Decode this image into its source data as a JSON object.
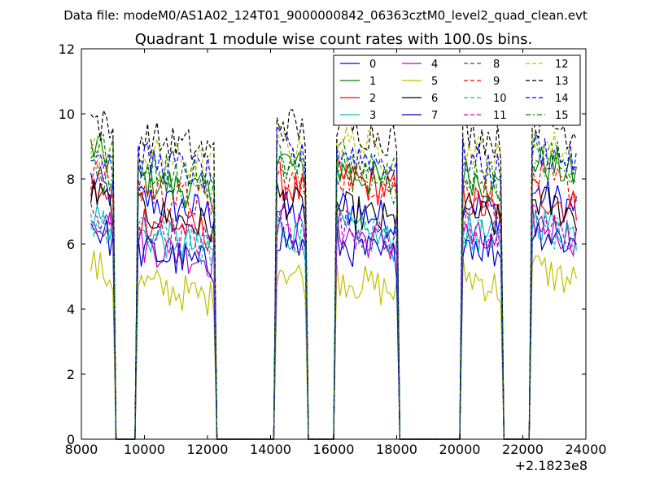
{
  "chart_data": {
    "type": "line",
    "suptitle": "Data file: modeM0/AS1A02_124T01_9000000842_06363cztM0_level2_quad_clean.evt",
    "title": "Quadrant 1 module wise count rates with 100.0s bins.",
    "xlabel": "",
    "ylabel": "",
    "xlim": [
      8000,
      24000
    ],
    "ylim": [
      0,
      12
    ],
    "xticks": [
      8000,
      10000,
      12000,
      14000,
      16000,
      18000,
      20000,
      22000,
      24000
    ],
    "xtick_labels": [
      "8000",
      "10000",
      "12000",
      "14000",
      "16000",
      "18000",
      "20000",
      "22000",
      "24000"
    ],
    "yticks": [
      0,
      2,
      4,
      6,
      8,
      10,
      12
    ],
    "ytick_labels": [
      "0",
      "2",
      "4",
      "6",
      "8",
      "10",
      "12"
    ],
    "x_offset_label": "+2.1823e8",
    "grid": false,
    "legend_position": "top-right",
    "legend_columns": 4,
    "x_start": 8300,
    "x_step": 100,
    "segments": [
      [
        8300,
        9000
      ],
      [
        9800,
        12200
      ],
      [
        14200,
        15100
      ],
      [
        16100,
        18000
      ],
      [
        20100,
        21300
      ],
      [
        22300,
        23700
      ]
    ],
    "series": [
      {
        "name": "0",
        "color": "#0000ff",
        "dash": "solid",
        "levels": [
          8.0,
          7.4,
          7.2,
          7.2,
          7.4,
          7.6
        ]
      },
      {
        "name": "1",
        "color": "#008000",
        "dash": "solid",
        "levels": [
          9.0,
          8.0,
          8.7,
          8.3,
          8.2,
          8.6
        ]
      },
      {
        "name": "2",
        "color": "#ff0000",
        "dash": "solid",
        "levels": [
          7.7,
          6.8,
          8.0,
          8.1,
          7.4,
          7.6
        ]
      },
      {
        "name": "3",
        "color": "#00bfbf",
        "dash": "solid",
        "levels": [
          7.0,
          6.3,
          6.6,
          6.5,
          6.5,
          6.8
        ]
      },
      {
        "name": "4",
        "color": "#bf00bf",
        "dash": "solid",
        "levels": [
          7.0,
          6.0,
          6.8,
          6.4,
          6.3,
          6.7
        ]
      },
      {
        "name": "5",
        "color": "#bfbf00",
        "dash": "solid",
        "levels": [
          5.4,
          4.8,
          5.4,
          5.0,
          5.1,
          5.3
        ]
      },
      {
        "name": "6",
        "color": "#000000",
        "dash": "solid",
        "levels": [
          7.6,
          7.0,
          7.5,
          7.1,
          7.1,
          7.4
        ]
      },
      {
        "name": "7",
        "color": "#0000cc",
        "dash": "solid",
        "levels": [
          6.6,
          5.8,
          6.3,
          6.0,
          6.2,
          6.5
        ]
      },
      {
        "name": "8",
        "color": "#008000",
        "dash": "dashed",
        "levels": [
          9.2,
          8.5,
          8.8,
          8.8,
          8.4,
          8.9
        ]
      },
      {
        "name": "9",
        "color": "#ff0000",
        "dash": "dashed",
        "levels": [
          8.2,
          7.7,
          8.1,
          8.2,
          7.8,
          8.1
        ]
      },
      {
        "name": "10",
        "color": "#00bfbf",
        "dash": "dashed",
        "levels": [
          6.8,
          6.3,
          6.6,
          6.7,
          6.5,
          6.6
        ]
      },
      {
        "name": "11",
        "color": "#bf00bf",
        "dash": "dashed",
        "levels": [
          6.9,
          6.5,
          6.6,
          6.6,
          6.6,
          6.7
        ]
      },
      {
        "name": "12",
        "color": "#bfbf00",
        "dash": "dashed",
        "levels": [
          9.0,
          8.8,
          9.2,
          9.2,
          9.0,
          9.2
        ]
      },
      {
        "name": "13",
        "color": "#000000",
        "dash": "dashed",
        "levels": [
          9.9,
          9.3,
          9.9,
          9.7,
          9.6,
          9.9
        ]
      },
      {
        "name": "14",
        "color": "#0000ff",
        "dash": "dashed",
        "levels": [
          9.0,
          8.6,
          9.0,
          8.9,
          8.7,
          9.0
        ]
      },
      {
        "name": "15",
        "color": "#008000",
        "dash": "dashdot",
        "levels": [
          8.4,
          8.0,
          8.4,
          8.3,
          8.1,
          8.4
        ]
      }
    ]
  }
}
